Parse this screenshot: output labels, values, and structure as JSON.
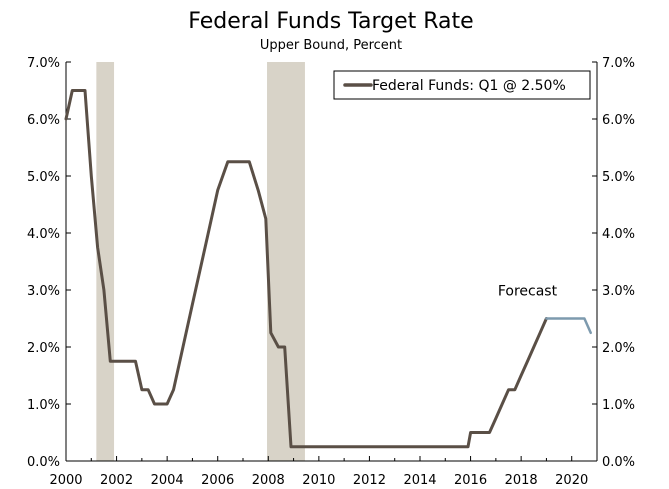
{
  "chart_data": {
    "type": "line",
    "title": "Federal Funds Target Rate",
    "subtitle": "Upper Bound, Percent",
    "xlabel": "",
    "ylabel": "",
    "xlim": [
      2000,
      2021
    ],
    "ylim": [
      0,
      7
    ],
    "x_ticks": [
      2000,
      2002,
      2004,
      2006,
      2008,
      2010,
      2012,
      2014,
      2016,
      2018,
      2020
    ],
    "x_tick_labels": [
      "2000",
      "2002",
      "2004",
      "2006",
      "2008",
      "2010",
      "2012",
      "2014",
      "2016",
      "2018",
      "2020"
    ],
    "y_ticks": [
      0,
      1,
      2,
      3,
      4,
      5,
      6,
      7
    ],
    "y_tick_labels": [
      "0.0%",
      "1.0%",
      "2.0%",
      "3.0%",
      "4.0%",
      "5.0%",
      "6.0%",
      "7.0%"
    ],
    "recessions": [
      {
        "start": 2001.2,
        "end": 2001.9
      },
      {
        "start": 2007.95,
        "end": 2009.45
      }
    ],
    "series": [
      {
        "name": "Federal Funds: Q1 @ 2.50%",
        "color": "#5a4f46",
        "points": [
          [
            2000.0,
            6.0
          ],
          [
            2000.25,
            6.5
          ],
          [
            2000.75,
            6.5
          ],
          [
            2001.0,
            5.0
          ],
          [
            2001.25,
            3.75
          ],
          [
            2001.5,
            3.0
          ],
          [
            2001.75,
            1.75
          ],
          [
            2002.0,
            1.75
          ],
          [
            2002.75,
            1.75
          ],
          [
            2003.0,
            1.25
          ],
          [
            2003.25,
            1.25
          ],
          [
            2003.5,
            1.0
          ],
          [
            2004.0,
            1.0
          ],
          [
            2004.25,
            1.25
          ],
          [
            2004.5,
            1.75
          ],
          [
            2005.0,
            2.75
          ],
          [
            2005.5,
            3.75
          ],
          [
            2006.0,
            4.75
          ],
          [
            2006.4,
            5.25
          ],
          [
            2007.25,
            5.25
          ],
          [
            2007.6,
            4.75
          ],
          [
            2007.9,
            4.25
          ],
          [
            2008.1,
            2.25
          ],
          [
            2008.4,
            2.0
          ],
          [
            2008.65,
            2.0
          ],
          [
            2008.9,
            0.25
          ],
          [
            2015.9,
            0.25
          ],
          [
            2016.0,
            0.5
          ],
          [
            2016.75,
            0.5
          ],
          [
            2017.0,
            0.75
          ],
          [
            2017.25,
            1.0
          ],
          [
            2017.5,
            1.25
          ],
          [
            2017.75,
            1.25
          ],
          [
            2018.0,
            1.5
          ],
          [
            2018.25,
            1.75
          ],
          [
            2018.5,
            2.0
          ],
          [
            2018.75,
            2.25
          ],
          [
            2019.0,
            2.5
          ]
        ]
      },
      {
        "name": "Forecast",
        "color": "#7d9aae",
        "points": [
          [
            2019.0,
            2.5
          ],
          [
            2020.5,
            2.5
          ],
          [
            2020.75,
            2.25
          ]
        ]
      }
    ],
    "legend": {
      "label": "Federal Funds: Q1 @ 2.50%",
      "placement": "top-right"
    },
    "annotations": [
      {
        "text": "Forecast",
        "x": 2018.25,
        "y": 2.9
      }
    ]
  },
  "colors": {
    "recession_band": "#d8d3c8",
    "axis": "#000000"
  }
}
